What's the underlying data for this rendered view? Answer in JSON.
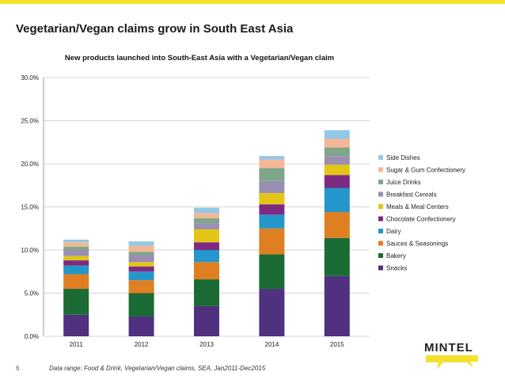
{
  "title": "Vegetarian/Vegan claims grow in South East Asia",
  "footer": "Data range: Food & Drink, Vegetarian/Vegan claims, SEA, Jan2011-Dec2015",
  "page_number": "6",
  "logo_text": "MINTEL",
  "colors": {
    "accent": "#f5e12c"
  },
  "chart_data": {
    "type": "bar",
    "stacked": true,
    "title": "New products launched into South-East Asia with a Vegetarian/Vegan claim",
    "xlabel": "",
    "ylabel": "",
    "ylim": [
      0,
      30
    ],
    "yticks": [
      0,
      5,
      10,
      15,
      20,
      25,
      30
    ],
    "ytick_labels": [
      "0.0%",
      "5.0%",
      "10.0%",
      "15.0%",
      "20.0%",
      "25.0%",
      "30.0%"
    ],
    "grid": true,
    "legend_position": "right",
    "categories": [
      "2011",
      "2012",
      "2013",
      "2014",
      "2015"
    ],
    "series": [
      {
        "name": "Snacks",
        "color": "#4f3180",
        "values": [
          2.5,
          2.3,
          3.5,
          5.5,
          7.0
        ]
      },
      {
        "name": "Bakery",
        "color": "#1a6b34",
        "values": [
          3.0,
          2.7,
          3.1,
          4.0,
          4.4
        ]
      },
      {
        "name": "Sauces & Seasonings",
        "color": "#df7f22",
        "values": [
          1.7,
          1.5,
          2.0,
          3.0,
          3.0
        ]
      },
      {
        "name": "Dairy",
        "color": "#2596c9",
        "values": [
          1.0,
          1.0,
          1.4,
          1.6,
          2.8
        ]
      },
      {
        "name": "Chocolate Confectionery",
        "color": "#7e2a82",
        "values": [
          0.6,
          0.6,
          0.9,
          1.2,
          1.5
        ]
      },
      {
        "name": "Meals &  Meal Centers",
        "color": "#e3c615",
        "values": [
          0.5,
          0.5,
          1.5,
          1.3,
          1.2
        ]
      },
      {
        "name": "Breakfast Cereals",
        "color": "#9a8eb2",
        "values": [
          0.7,
          0.8,
          0.7,
          1.4,
          1.0
        ]
      },
      {
        "name": "Juice Drinks",
        "color": "#7fa58a",
        "values": [
          0.4,
          0.4,
          0.6,
          1.5,
          1.0
        ]
      },
      {
        "name": "Sugar & Gum Confectionery",
        "color": "#f3b796",
        "values": [
          0.5,
          0.7,
          0.6,
          1.0,
          1.0
        ]
      },
      {
        "name": "Side Dishes",
        "color": "#93c8e7",
        "values": [
          0.3,
          0.5,
          0.6,
          0.4,
          1.0
        ]
      }
    ]
  }
}
